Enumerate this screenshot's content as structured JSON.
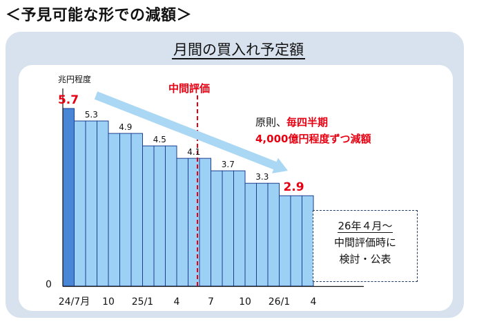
{
  "heading": "＜予見可能な形での減額＞",
  "chart_data": {
    "type": "bar",
    "title": "月間の買入れ予定額",
    "ylabel": "兆円程度",
    "ylim": [
      0,
      5.7
    ],
    "zero_label": "0",
    "x_tick_labels": [
      "24/7月",
      "10",
      "25/1",
      "4",
      "7",
      "10",
      "26/1",
      "4"
    ],
    "series": [
      {
        "values": [
          5.7,
          5.3,
          5.3,
          5.3,
          4.9,
          4.9,
          4.9,
          4.5,
          4.5,
          4.5,
          4.1,
          4.1,
          4.1,
          3.7,
          3.7,
          3.7,
          3.3,
          3.3,
          3.3,
          2.9,
          2.9,
          2.9
        ],
        "colors": {
          "first": "#4a86d6",
          "rest": "#9dd0f5",
          "border": "#1a3d8f"
        }
      }
    ],
    "value_labels": [
      {
        "index": 0,
        "text": "5.7",
        "highlight": true
      },
      {
        "index": 1,
        "text": "5.3",
        "highlight": false
      },
      {
        "index": 4,
        "text": "4.9",
        "highlight": false
      },
      {
        "index": 7,
        "text": "4.5",
        "highlight": false
      },
      {
        "index": 10,
        "text": "4.1",
        "highlight": false
      },
      {
        "index": 13,
        "text": "3.7",
        "highlight": false
      },
      {
        "index": 16,
        "text": "3.3",
        "highlight": false
      },
      {
        "index": 19,
        "text": "2.9",
        "highlight": true
      }
    ],
    "midpoint_label": "中間評価",
    "annotation": {
      "line1_prefix": "原則、",
      "line1_emphasis": "毎四半期",
      "line2": "4,000億円程度ずつ減額"
    },
    "note": [
      "26年４月～",
      "中間評価時に",
      "検討・公表"
    ],
    "accent_red": "#e60012",
    "arrow_color": "#a9d7f4"
  }
}
